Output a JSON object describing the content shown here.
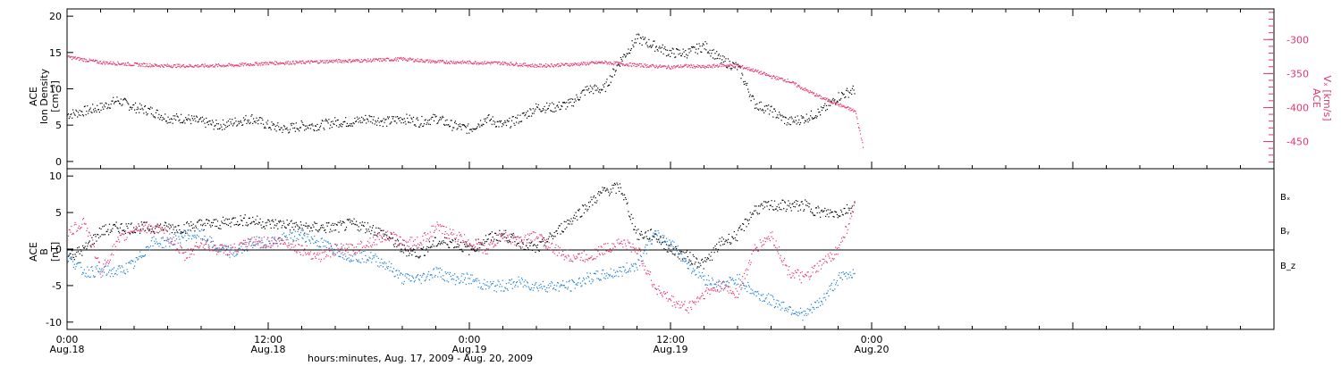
{
  "chart_data": [
    {
      "type": "scatter",
      "panel": "top",
      "ylabel_left": [
        "ACE",
        "Ion Density",
        "[cm⁻³]"
      ],
      "ylabel_right": [
        "ACE",
        "Vₓ [km/s]"
      ],
      "ylim_left": [
        -1,
        21
      ],
      "ylim_right": [
        -490,
        -255
      ],
      "yticks_left": [
        "0",
        "5",
        "10",
        "15",
        "20"
      ],
      "yticks_right": [
        "-300",
        "-350",
        "-400",
        "-450"
      ],
      "series": [
        {
          "name": "Ion Density",
          "axis": "left",
          "color": "#000000",
          "x_hours": [
            0,
            1,
            2,
            3,
            4,
            5,
            6,
            7,
            8,
            9,
            10,
            11,
            12,
            13,
            14,
            15,
            16,
            17,
            18,
            19,
            20,
            21,
            22,
            23,
            24,
            25,
            26,
            27,
            28,
            29,
            30,
            31,
            32,
            33,
            34,
            35,
            36,
            37,
            38,
            39,
            40,
            41,
            42,
            43,
            44,
            45,
            46,
            47
          ],
          "values": [
            6.5,
            7,
            7.5,
            8.5,
            7.5,
            7,
            6,
            6,
            5.5,
            5,
            5.5,
            6,
            5,
            4.5,
            5,
            5,
            5.5,
            5.5,
            6,
            5.5,
            6,
            5.5,
            6,
            5,
            4.5,
            6,
            5,
            6,
            7.5,
            7.5,
            8,
            10,
            10,
            14,
            17,
            16,
            15,
            15,
            16,
            14,
            13,
            8,
            7,
            5.5,
            6,
            7,
            9,
            10
          ]
        },
        {
          "name": "Vx",
          "axis": "right",
          "color": "#e8356a",
          "x_hours": [
            0,
            2,
            4,
            6,
            8,
            10,
            12,
            14,
            16,
            18,
            20,
            22,
            24,
            26,
            28,
            30,
            32,
            34,
            36,
            37,
            38,
            39,
            40,
            41,
            42,
            43,
            44,
            45,
            46,
            47,
            47.5
          ],
          "values": [
            -325,
            -333,
            -336,
            -338,
            -338,
            -337,
            -334,
            -333,
            -331,
            -330,
            -328,
            -332,
            -333,
            -334,
            -338,
            -336,
            -333,
            -337,
            -340,
            -338,
            -340,
            -337,
            -338,
            -345,
            -354,
            -360,
            -373,
            -385,
            -395,
            -405,
            -460
          ]
        }
      ]
    },
    {
      "type": "scatter",
      "panel": "bottom",
      "ylabel_left": [
        "ACE",
        "B",
        "[nT]"
      ],
      "ylim": [
        -11,
        11
      ],
      "yticks": [
        "10",
        "5",
        "0",
        "-5",
        "-10"
      ],
      "legend": [
        "Bₓ",
        "Bᵧ",
        "B_z"
      ],
      "xlabel": "hours:minutes, Aug. 17, 2009 - Aug. 20, 2009",
      "xticks": [
        {
          "time": "0:00",
          "date": "Aug.18"
        },
        {
          "time": "12:00",
          "date": "Aug.18"
        },
        {
          "time": "0:00",
          "date": "Aug.19"
        },
        {
          "time": "12:00",
          "date": "Aug.19"
        },
        {
          "time": "0:00",
          "date": "Aug.20"
        }
      ],
      "series": [
        {
          "name": "Bx",
          "color": "#000000",
          "x_hours": [
            0,
            1,
            2,
            3,
            4,
            5,
            6,
            7,
            8,
            9,
            10,
            11,
            12,
            13,
            14,
            15,
            16,
            17,
            18,
            19,
            20,
            21,
            22,
            23,
            24,
            25,
            26,
            27,
            28,
            29,
            30,
            31,
            32,
            33,
            34,
            35,
            36,
            37,
            38,
            39,
            40,
            41,
            42,
            43,
            44,
            45,
            46,
            47
          ],
          "values": [
            -1,
            0,
            2.5,
            3,
            3,
            3,
            3,
            3,
            3.5,
            3.5,
            4,
            4,
            3.5,
            3.5,
            3,
            3,
            3,
            3.5,
            3,
            2,
            0,
            -0.5,
            1,
            1,
            0,
            1.5,
            2,
            1,
            0,
            2,
            4,
            6,
            8,
            8.5,
            2,
            2,
            0,
            -1,
            -2,
            1,
            2,
            5.5,
            6,
            6,
            6,
            5,
            5,
            6
          ]
        },
        {
          "name": "By",
          "color": "#1f7fd6",
          "x_hours": [
            0,
            1,
            2,
            3,
            4,
            5,
            6,
            7,
            8,
            9,
            10,
            11,
            12,
            13,
            14,
            15,
            16,
            17,
            18,
            19,
            20,
            21,
            22,
            23,
            24,
            25,
            26,
            27,
            28,
            29,
            30,
            31,
            32,
            33,
            34,
            35,
            36,
            37,
            38,
            39,
            40,
            41,
            42,
            43,
            44,
            45,
            46,
            47
          ],
          "values": [
            -1,
            -3,
            -3,
            -3,
            -2,
            1,
            1,
            2,
            2,
            0,
            -0.5,
            1,
            1,
            1.5,
            2,
            1,
            0,
            -1,
            -1,
            -2,
            -4,
            -4,
            -3,
            -4,
            -4,
            -5,
            -5,
            -4.5,
            -5,
            -5,
            -5,
            -4,
            -3.5,
            -3,
            -2,
            2,
            1,
            -2,
            -4,
            -5,
            -4,
            -6,
            -7,
            -8,
            -9,
            -7,
            -4,
            -3
          ]
        },
        {
          "name": "Bz",
          "color": "#e8356a",
          "x_hours": [
            0,
            1,
            2,
            3,
            4,
            5,
            6,
            7,
            8,
            9,
            10,
            11,
            12,
            13,
            14,
            15,
            16,
            17,
            18,
            19,
            20,
            21,
            22,
            23,
            24,
            25,
            26,
            27,
            28,
            29,
            30,
            31,
            32,
            33,
            34,
            35,
            36,
            37,
            38,
            39,
            40,
            41,
            42,
            43,
            44,
            45,
            46,
            47
          ],
          "values": [
            2,
            4,
            -3,
            1,
            3,
            3,
            2,
            -1,
            1,
            0,
            0,
            1,
            1,
            1,
            0,
            -1,
            0,
            0,
            1,
            2,
            1,
            1,
            3,
            2,
            1,
            0,
            2,
            1,
            2,
            0,
            -1,
            -1,
            0,
            1,
            0,
            -5,
            -7,
            -8,
            -6,
            -5,
            -6,
            0,
            2,
            -3,
            -4,
            -2,
            0,
            6
          ]
        }
      ]
    }
  ],
  "legend_labels": {
    "bx": "Bₓ",
    "by": "Bᵧ",
    "bz": "B_z"
  },
  "top_panel": {
    "left_ylabel_line1": "ACE",
    "left_ylabel_line2": "Ion Density",
    "left_ylabel_line3": "[cm⁻³]",
    "right_ylabel_line1": "ACE",
    "right_ylabel_line2": "Vₓ [km/s]"
  },
  "bottom_panel": {
    "left_ylabel_line1": "ACE",
    "left_ylabel_line2": "B",
    "left_ylabel_line3": "[nT]"
  },
  "x_axis": {
    "title": "hours:minutes, Aug. 17, 2009 - Aug. 20, 2009"
  }
}
